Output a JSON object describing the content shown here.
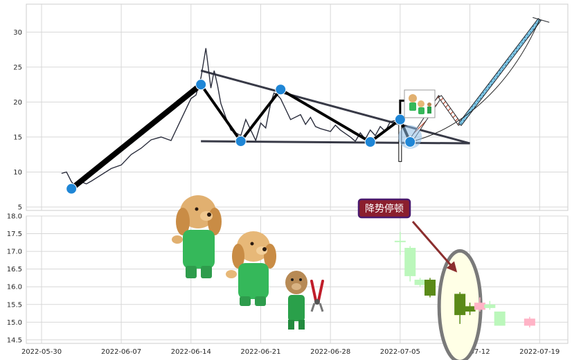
{
  "chart_data": [
    {
      "type": "line",
      "panel": "top",
      "title": "",
      "xlabel": "",
      "ylabel": "",
      "ylim": [
        4.5,
        34
      ],
      "yticks": [
        "5",
        "10",
        "15",
        "20",
        "25",
        "30"
      ],
      "grid": true,
      "series": [
        {
          "x": [
            "2022-06-01",
            "2022-06-01",
            "2022-06-02",
            "2022-06-02",
            "2022-06-03",
            "2022-06-03",
            "2022-06-04",
            "2022-06-05",
            "2022-06-06",
            "2022-06-07",
            "2022-06-08",
            "2022-06-09",
            "2022-06-10",
            "2022-06-11",
            "2022-06-12",
            "2022-06-13",
            "2022-06-14",
            "2022-06-14",
            "2022-06-15",
            "2022-06-15",
            "2022-06-16",
            "2022-06-16",
            "2022-06-16",
            "2022-06-17",
            "2022-06-17",
            "2022-06-18",
            "2022-06-19",
            "2022-06-19",
            "2022-06-20",
            "2022-06-20",
            "2022-06-21",
            "2022-06-21",
            "2022-06-22",
            "2022-06-22",
            "2022-06-22",
            "2022-06-23",
            "2022-06-23",
            "2022-06-24",
            "2022-06-25",
            "2022-06-25",
            "2022-06-26",
            "2022-06-26",
            "2022-06-27",
            "2022-06-28",
            "2022-06-28",
            "2022-06-29",
            "2022-06-30",
            "2022-06-30",
            "2022-07-01",
            "2022-07-01",
            "2022-07-02",
            "2022-07-02",
            "2022-07-03",
            "2022-07-03",
            "2022-07-04",
            "2022-07-05",
            "2022-07-05"
          ],
          "values": [
            9.8,
            10.0,
            8.6,
            7.8,
            8.6,
            8.3,
            8.7,
            9.6,
            10.5,
            11.0,
            12.5,
            13.4,
            14.6,
            15.0,
            14.5,
            17.5,
            20.5,
            21.0,
            23.5,
            27.7,
            22.0,
            24.5,
            22.4,
            19.8,
            17.8,
            16.0,
            15.2,
            17.5,
            16.0,
            14.5,
            17.0,
            16.3,
            19.8,
            21.3,
            21.0,
            20.5,
            19.0,
            17.5,
            18.2,
            16.8,
            17.8,
            16.5,
            16.2,
            15.8,
            16.7,
            16.0,
            15.0,
            14.4,
            15.6,
            14.7,
            16.0,
            15.2,
            16.5,
            15.8,
            17.2,
            17.5,
            16.0
          ]
        }
      ],
      "pattern": {
        "zigzag": [
          {
            "x": "2022-06-02",
            "y": 7.6
          },
          {
            "x": "2022-06-15",
            "y": 22.5
          },
          {
            "x": "2022-06-19",
            "y": 14.4
          },
          {
            "x": "2022-06-23",
            "y": 21.8
          },
          {
            "x": "2022-07-02",
            "y": 14.3
          },
          {
            "x": "2022-07-05",
            "y": 17.5
          },
          {
            "x": "2022-07-06",
            "y": 14.3
          }
        ],
        "upper_trendline": [
          {
            "x": "2022-06-15",
            "y": 24.5
          },
          {
            "x": "2022-07-12",
            "y": 14.1
          }
        ],
        "lower_trendline": [
          {
            "x": "2022-06-15",
            "y": 14.4
          },
          {
            "x": "2022-07-12",
            "y": 14.1
          }
        ],
        "projection": [
          {
            "x": "2022-07-06",
            "y": 14.3
          },
          {
            "x": "2022-07-09",
            "y": 20.8
          },
          {
            "x": "2022-07-11",
            "y": 16.8
          },
          {
            "x": "2022-07-19",
            "y": 31.8
          }
        ],
        "target_curve": [
          {
            "x": "2022-07-06",
            "y": 14.3
          },
          {
            "x": "2022-07-11",
            "y": 16.0
          },
          {
            "x": "2022-07-16",
            "y": 22.0
          },
          {
            "x": "2022-07-19",
            "y": 31.8
          }
        ],
        "breakout_bracket": [
          {
            "x": "2022-07-05",
            "y": 11.5
          },
          {
            "x": "2022-07-05",
            "y": 20.2
          },
          {
            "x": "2022-07-06",
            "y": 20.2
          }
        ],
        "highlight": {
          "x": "2022-07-06",
          "y": 15.0
        }
      }
    },
    {
      "type": "candlestick",
      "panel": "bottom",
      "title": "",
      "xlabel": "",
      "ylabel": "",
      "ylim": [
        14.4,
        18.0
      ],
      "yticks": [
        "14.5",
        "15.0",
        "15.5",
        "16.0",
        "16.5",
        "17.0",
        "17.5",
        "18.0"
      ],
      "xlim": [
        "2022-05-30",
        "2022-07-21"
      ],
      "xticks": [
        "2022-05-30",
        "2022-06-07",
        "2022-06-14",
        "2022-06-21",
        "2022-06-28",
        "2022-07-05",
        "2022-07-12",
        "2022-07-19"
      ],
      "grid": true,
      "candles": [
        {
          "x": "2022-07-05",
          "open": 17.3,
          "close": 17.3,
          "high": 17.55,
          "low": 16.9,
          "style": "light-green"
        },
        {
          "x": "2022-07-06",
          "open": 17.1,
          "close": 16.3,
          "high": 17.15,
          "low": 16.15,
          "style": "light-green"
        },
        {
          "x": "2022-07-07",
          "open": 16.2,
          "close": 16.05,
          "high": 16.25,
          "low": 16.0,
          "style": "light-green"
        },
        {
          "x": "2022-07-08",
          "open": 16.2,
          "close": 15.75,
          "high": 16.25,
          "low": 15.7,
          "style": "dark-green"
        },
        {
          "x": "2022-07-11",
          "open": 15.8,
          "close": 15.2,
          "high": 15.85,
          "low": 14.95,
          "style": "dark-green"
        },
        {
          "x": "2022-07-12",
          "open": 15.45,
          "close": 15.3,
          "high": 15.55,
          "low": 15.2,
          "style": "dark-green"
        },
        {
          "x": "2022-07-13",
          "open": 15.35,
          "close": 15.55,
          "high": 15.7,
          "low": 15.3,
          "style": "pink"
        },
        {
          "x": "2022-07-14",
          "open": 15.5,
          "close": 15.4,
          "high": 15.6,
          "low": 15.35,
          "style": "light-green"
        },
        {
          "x": "2022-07-15",
          "open": 15.3,
          "close": 14.9,
          "high": 15.3,
          "low": 14.9,
          "style": "light-green"
        },
        {
          "x": "2022-07-18",
          "open": 14.9,
          "close": 15.1,
          "high": 15.15,
          "low": 14.85,
          "style": "pink"
        }
      ],
      "annotation": {
        "text": "降势停顿",
        "target": {
          "x": "2022-07-11",
          "y": 15.45
        }
      },
      "ellipse_center": {
        "x": "2022-07-11",
        "y": 15.45
      }
    }
  ],
  "colors": {
    "price_line": "#2a2d3c",
    "zigzag": "#000000",
    "trendline": "#383a47",
    "marker": "#1f86d6",
    "projection_fill": "#7fc8e8",
    "projection_stroke": "#27292e",
    "projection_hatch": "#c04a30",
    "curve": "#222222",
    "candle_light_green": "#bbf7bb",
    "candle_dark_green": "#5a8a18",
    "candle_pink": "#ffb3c6",
    "annotation_bg": "#8b1f2e",
    "annotation_border": "#4a1a6e",
    "arrow": "#8b2e2e",
    "ellipse_fill": "#ffffe6",
    "ellipse_stroke": "#7a7a7a",
    "grid": "#d7d7d7"
  },
  "decorations": {
    "icons": [
      "dog-in-overalls-icon",
      "dog-in-overalls-icon",
      "dog-with-pliers-icon",
      "dogs-thumbnail-icon"
    ]
  }
}
